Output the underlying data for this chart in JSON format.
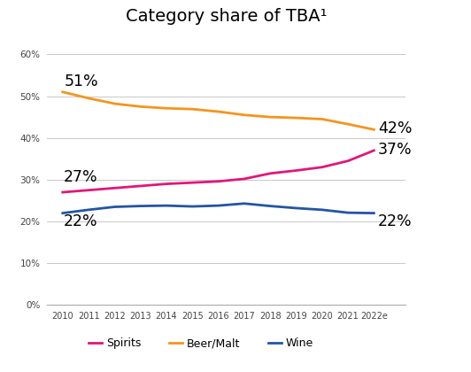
{
  "title": "Category share of TBA¹",
  "years": [
    2010,
    2011,
    2012,
    2013,
    2014,
    2015,
    2016,
    2017,
    2018,
    2019,
    2020,
    2021,
    2022
  ],
  "year_labels": [
    "2010",
    "2011",
    "2012",
    "2013",
    "2014",
    "2015",
    "2016",
    "2017",
    "2018",
    "2019",
    "2020",
    "2021",
    "2022e"
  ],
  "spirits": [
    0.27,
    0.275,
    0.28,
    0.285,
    0.29,
    0.293,
    0.296,
    0.302,
    0.315,
    0.322,
    0.33,
    0.345,
    0.37
  ],
  "beer_malt": [
    0.51,
    0.495,
    0.482,
    0.475,
    0.471,
    0.469,
    0.463,
    0.455,
    0.45,
    0.448,
    0.445,
    0.433,
    0.42
  ],
  "wine": [
    0.22,
    0.228,
    0.235,
    0.237,
    0.238,
    0.236,
    0.238,
    0.243,
    0.237,
    0.232,
    0.228,
    0.221,
    0.22
  ],
  "spirits_color": "#e0177b",
  "beer_color": "#f5941d",
  "wine_color": "#2255a4",
  "bg_color": "#ffffff",
  "grid_color": "#c8c8c8",
  "ylim": [
    0,
    0.65
  ],
  "yticks": [
    0.0,
    0.1,
    0.2,
    0.3,
    0.4,
    0.5,
    0.6
  ],
  "start_label_spirits": "27%",
  "start_label_beer": "51%",
  "start_label_wine": "22%",
  "end_label_spirits": "37%",
  "end_label_beer": "42%",
  "end_label_wine": "22%"
}
